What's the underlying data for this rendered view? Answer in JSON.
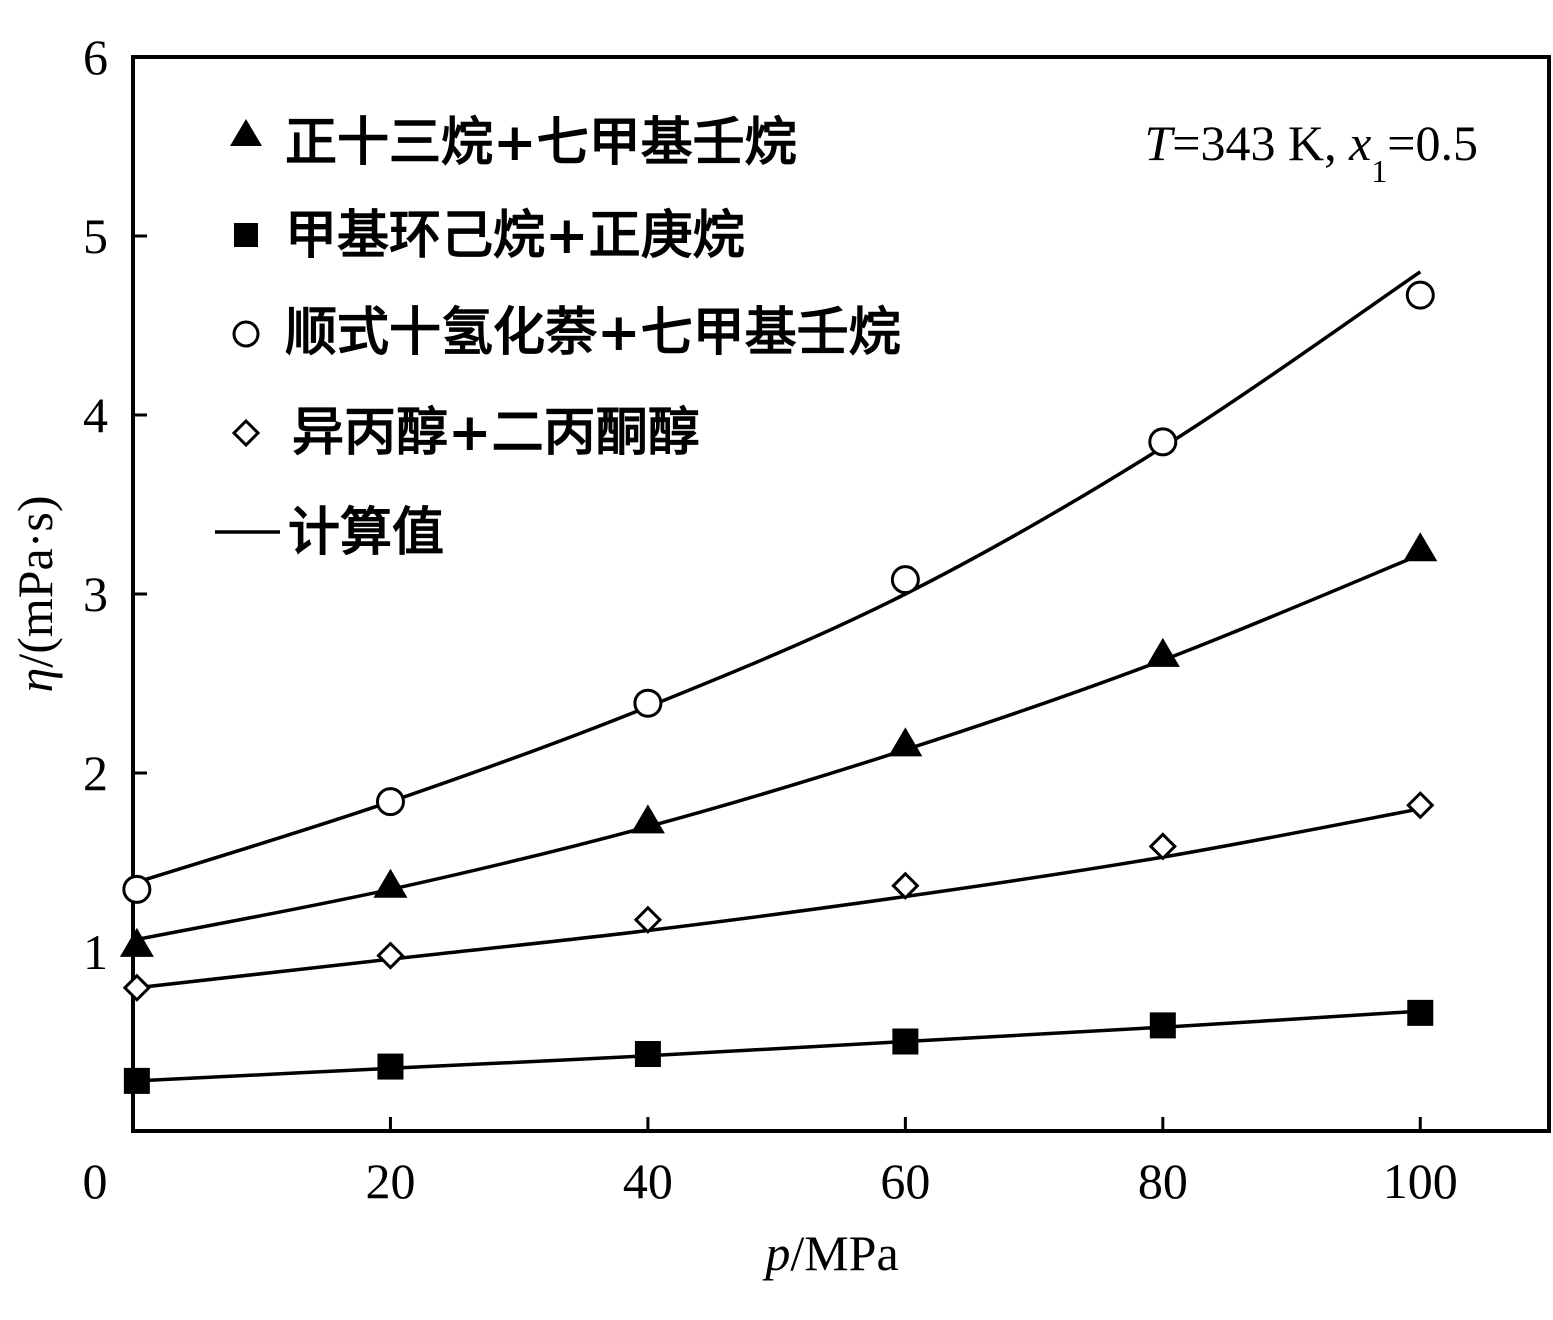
{
  "chart_data": {
    "type": "line",
    "xlabel_var": "p",
    "xlabel_unit": "/MPa",
    "ylabel_var": "η",
    "ylabel_unit": "/(mPa·s)",
    "xlim": [
      0,
      110
    ],
    "ylim": [
      0,
      6
    ],
    "x_ticks": [
      0,
      20,
      40,
      60,
      80,
      100
    ],
    "y_ticks": [
      1,
      2,
      3,
      4,
      5,
      6
    ],
    "x_tick_labels": [
      "0",
      "20",
      "40",
      "60",
      "80",
      "100"
    ],
    "y_tick_labels": [
      "1",
      "2",
      "3",
      "4",
      "5",
      "6"
    ],
    "annotation": {
      "T_var": "T",
      "T_text": "=343 K, ",
      "x_var": "x",
      "x_sub": "1",
      "x_text": "=0.5"
    },
    "legend": {
      "placement": "top-left",
      "line_label": "计算值"
    },
    "series": [
      {
        "name": "正十三烷+七甲基壬烷",
        "marker": "triangle-filled",
        "x": [
          0.3,
          20,
          40,
          60,
          80,
          100
        ],
        "y": [
          1.04,
          1.37,
          1.73,
          2.16,
          2.66,
          3.25
        ],
        "calc": [
          1.07,
          1.35,
          1.7,
          2.13,
          2.63,
          3.22
        ]
      },
      {
        "name": "甲基环己烷+正庚烷",
        "marker": "square-filled",
        "x": [
          0.3,
          20,
          40,
          60,
          80,
          100
        ],
        "y": [
          0.28,
          0.36,
          0.43,
          0.5,
          0.59,
          0.66
        ],
        "calc": [
          0.28,
          0.35,
          0.42,
          0.5,
          0.58,
          0.67
        ]
      },
      {
        "name": "顺式十氢化萘+七甲基壬烷",
        "marker": "circle-open",
        "x": [
          0.3,
          20,
          40,
          60,
          80,
          100
        ],
        "y": [
          1.35,
          1.84,
          2.39,
          3.08,
          3.85,
          4.67
        ],
        "calc": [
          1.39,
          1.84,
          2.37,
          3.0,
          3.82,
          4.8
        ]
      },
      {
        "name": "异丙醇+二丙酮醇",
        "marker": "diamond-open",
        "x": [
          0.3,
          20,
          40,
          60,
          80,
          100
        ],
        "y": [
          0.8,
          0.98,
          1.18,
          1.37,
          1.59,
          1.82
        ],
        "calc": [
          0.8,
          0.96,
          1.12,
          1.31,
          1.53,
          1.8
        ]
      }
    ]
  }
}
